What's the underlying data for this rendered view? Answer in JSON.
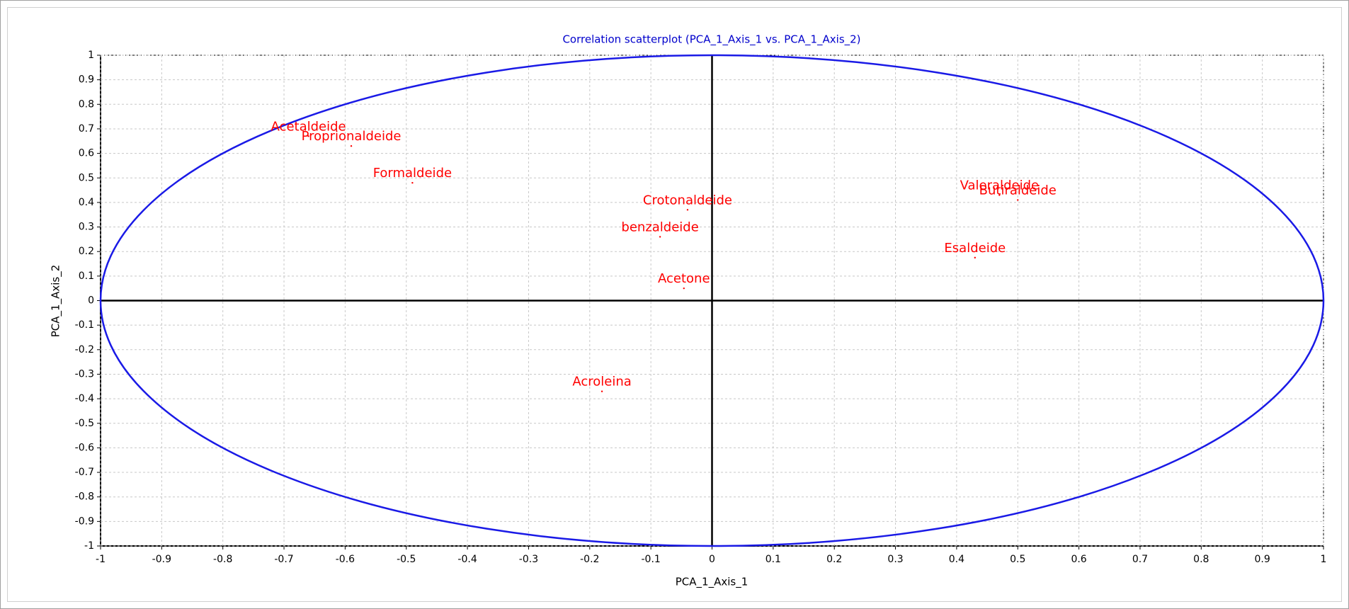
{
  "chart_data": {
    "type": "scatter",
    "title": "Correlation scatterplot (PCA_1_Axis_1 vs. PCA_1_Axis_2)",
    "x_label": "PCA_1_Axis_1",
    "y_label": "PCA_1_Axis_2",
    "labels": [
      "Acetaldeide",
      "Proprionaldeide",
      "Formaldeide",
      "Crotonaldeide",
      "benzaldeide",
      "Acetone",
      "Acroleina",
      "Valeraldeide",
      "Butiraldeide",
      "Esaldeide"
    ],
    "x": [
      -0.66,
      -0.59,
      -0.49,
      -0.04,
      -0.085,
      -0.046,
      -0.18,
      0.47,
      0.5,
      0.43
    ],
    "y": [
      0.67,
      0.63,
      0.48,
      0.37,
      0.26,
      0.05,
      -0.37,
      0.43,
      0.41,
      0.175
    ],
    "color": "#ff0000",
    "circle_color": "#1a1ae6",
    "xlim": [
      -1,
      1
    ],
    "ylim": [
      -1,
      1
    ],
    "xticks": [
      -1,
      -0.9,
      -0.8,
      -0.7,
      -0.6,
      -0.5,
      -0.4,
      -0.3,
      -0.2,
      -0.1,
      0,
      0.1,
      0.2,
      0.3,
      0.4,
      0.5,
      0.6,
      0.7,
      0.8,
      0.9,
      1
    ],
    "yticks": [
      -1,
      -0.9,
      -0.8,
      -0.7,
      -0.6,
      -0.5,
      -0.4,
      -0.3,
      -0.2,
      -0.1,
      0,
      0.1,
      0.2,
      0.3,
      0.4,
      0.5,
      0.6,
      0.7,
      0.8,
      0.9,
      1
    ],
    "grid": true
  }
}
